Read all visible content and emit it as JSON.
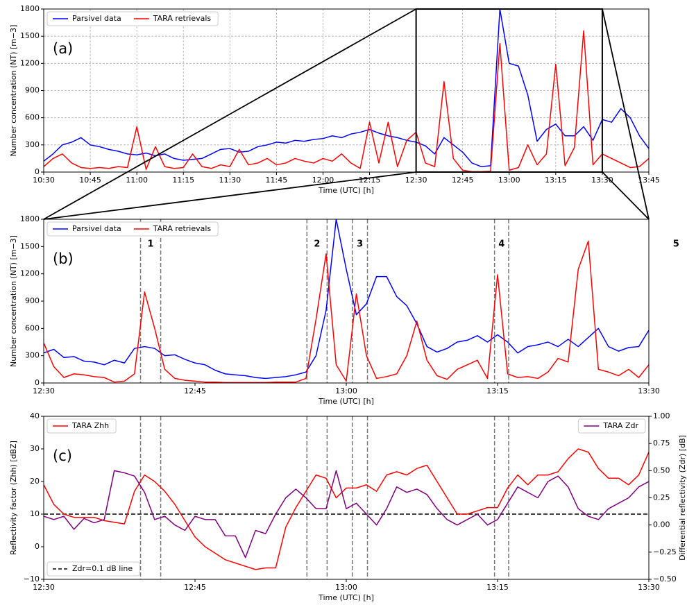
{
  "chart_data": [
    {
      "type": "line",
      "panel_label": "(a)",
      "xlabel": "Time (UTC) [h]",
      "ylabel": "Number concentration (NT) [m−3]",
      "grid": true,
      "xlim": [
        630,
        825
      ],
      "ylim": [
        0,
        1800
      ],
      "xticks": [
        {
          "value": 630,
          "label": "10:30"
        },
        {
          "value": 645,
          "label": "10:45"
        },
        {
          "value": 660,
          "label": "11:00"
        },
        {
          "value": 675,
          "label": "11:15"
        },
        {
          "value": 690,
          "label": "11:30"
        },
        {
          "value": 705,
          "label": "11:45"
        },
        {
          "value": 720,
          "label": "12:00"
        },
        {
          "value": 735,
          "label": "12:15"
        },
        {
          "value": 750,
          "label": "12:30"
        },
        {
          "value": 765,
          "label": "12:45"
        },
        {
          "value": 780,
          "label": "13:00"
        },
        {
          "value": 795,
          "label": "13:15"
        },
        {
          "value": 810,
          "label": "13:30"
        },
        {
          "value": 825,
          "label": "13:45"
        }
      ],
      "yticks": [
        0,
        300,
        600,
        900,
        1200,
        1500,
        1800
      ],
      "x": [
        630,
        633,
        636,
        639,
        642,
        645,
        648,
        651,
        654,
        657,
        660,
        663,
        666,
        669,
        672,
        675,
        678,
        681,
        684,
        687,
        690,
        693,
        696,
        699,
        702,
        705,
        708,
        711,
        714,
        717,
        720,
        723,
        726,
        729,
        732,
        735,
        738,
        741,
        744,
        747,
        750,
        753,
        756,
        759,
        762,
        765,
        768,
        771,
        774,
        777,
        780,
        783,
        786,
        789,
        792,
        795,
        798,
        801,
        804,
        807,
        810,
        813,
        816,
        819,
        822,
        825
      ],
      "series": [
        {
          "name": "Parsivel data",
          "color": "#0000ff",
          "legend": "upper left",
          "values": [
            120,
            200,
            300,
            330,
            380,
            300,
            280,
            250,
            230,
            200,
            190,
            210,
            180,
            200,
            150,
            130,
            140,
            150,
            200,
            250,
            260,
            220,
            230,
            280,
            300,
            330,
            320,
            350,
            340,
            360,
            370,
            400,
            380,
            420,
            440,
            470,
            430,
            400,
            380,
            350,
            330,
            290,
            200,
            380,
            300,
            220,
            100,
            60,
            70,
            1800,
            1200,
            1170,
            850,
            340,
            470,
            530,
            400,
            400,
            500,
            350,
            580,
            550,
            700,
            600,
            400,
            260
          ]
        },
        {
          "name": "TARA retrievals",
          "color": "#ff0000",
          "legend": "upper left",
          "values": [
            60,
            150,
            200,
            100,
            50,
            40,
            50,
            40,
            60,
            50,
            500,
            30,
            280,
            60,
            40,
            50,
            200,
            60,
            40,
            80,
            60,
            250,
            80,
            100,
            150,
            80,
            100,
            150,
            120,
            100,
            150,
            120,
            200,
            100,
            40,
            550,
            100,
            550,
            60,
            350,
            440,
            100,
            60,
            1000,
            150,
            20,
            5,
            5,
            10,
            1420,
            20,
            50,
            300,
            80,
            200,
            1190,
            70,
            270,
            1560,
            80,
            200,
            150,
            100,
            50,
            60,
            150
          ]
        }
      ]
    },
    {
      "type": "line",
      "panel_label": "(b)",
      "xlabel": "Time (UTC) [h]",
      "ylabel": "Number concentration (NT) [m−3]",
      "grid": false,
      "xlim": [
        750,
        810
      ],
      "ylim": [
        0,
        1800
      ],
      "xticks": [
        {
          "value": 750,
          "label": "12:30"
        },
        {
          "value": 765,
          "label": "12:45"
        },
        {
          "value": 780,
          "label": "13:00"
        },
        {
          "value": 795,
          "label": "13:15"
        },
        {
          "value": 810,
          "label": "13:30"
        }
      ],
      "yticks": [
        0,
        300,
        600,
        900,
        1200,
        1500,
        1800
      ],
      "vlines": [
        759.6,
        761.6,
        776.1,
        778.1,
        780.6,
        782.1,
        794.7,
        796.1,
        811.7,
        813.7
      ],
      "event_labels": [
        "1",
        "2",
        "3",
        "4",
        "5"
      ],
      "x": [
        750,
        751,
        752,
        753,
        754,
        755,
        756,
        757,
        758,
        759,
        760,
        761,
        762,
        763,
        764,
        765,
        766,
        767,
        768,
        769,
        770,
        771,
        772,
        773,
        774,
        775,
        776,
        777,
        778,
        779,
        780,
        781,
        782,
        783,
        784,
        785,
        786,
        787,
        788,
        789,
        790,
        791,
        792,
        793,
        794,
        795,
        796,
        797,
        798,
        799,
        800,
        801,
        802,
        803,
        804,
        805,
        806,
        807,
        808,
        809,
        810
      ],
      "series": [
        {
          "name": "Parsivel data",
          "color": "#0000ff",
          "legend": "upper left",
          "values": [
            330,
            370,
            280,
            290,
            240,
            230,
            200,
            250,
            220,
            380,
            400,
            380,
            300,
            310,
            260,
            220,
            200,
            140,
            100,
            90,
            80,
            60,
            50,
            60,
            70,
            90,
            120,
            300,
            800,
            1800,
            1250,
            750,
            870,
            1170,
            1170,
            950,
            850,
            650,
            400,
            340,
            380,
            450,
            470,
            520,
            450,
            530,
            450,
            330,
            400,
            420,
            450,
            400,
            480,
            400,
            500,
            600,
            400,
            350,
            390,
            400,
            580
          ]
        },
        {
          "name": "TARA retrievals",
          "color": "#ff0000",
          "legend": "upper left",
          "values": [
            440,
            180,
            60,
            100,
            90,
            70,
            60,
            10,
            20,
            100,
            1000,
            600,
            150,
            50,
            30,
            20,
            10,
            10,
            5,
            5,
            5,
            5,
            5,
            10,
            10,
            10,
            50,
            700,
            1420,
            200,
            20,
            980,
            300,
            50,
            70,
            100,
            300,
            680,
            250,
            80,
            40,
            150,
            200,
            250,
            50,
            1190,
            100,
            60,
            70,
            50,
            120,
            270,
            230,
            1250,
            1560,
            150,
            120,
            80,
            150,
            60,
            200
          ]
        }
      ]
    },
    {
      "type": "line",
      "panel_label": "(c)",
      "xlabel": "Time (UTC) [h]",
      "ylabel": "Reflectivity factor (Zhh) [dBZ]",
      "y2label": "Differential reflectivity (Zdr) [dB]",
      "grid": false,
      "xlim": [
        750,
        810
      ],
      "ylim": [
        -10,
        40
      ],
      "y2lim": [
        -0.5,
        1.0
      ],
      "xticks": [
        {
          "value": 750,
          "label": "12:30"
        },
        {
          "value": 765,
          "label": "12:45"
        },
        {
          "value": 780,
          "label": "13:00"
        },
        {
          "value": 795,
          "label": "13:15"
        },
        {
          "value": 810,
          "label": "13:30"
        }
      ],
      "yticks": [
        {
          "value": -10,
          "label": "−10"
        },
        0,
        10,
        20,
        30,
        40
      ],
      "y2ticks": [
        {
          "value": -0.5,
          "label": "−0.50"
        },
        {
          "value": -0.25,
          "label": "−0.25"
        },
        {
          "value": 0,
          "label": "0.00"
        },
        {
          "value": 0.25,
          "label": "0.25"
        },
        {
          "value": 0.5,
          "label": "0.50"
        },
        {
          "value": 0.75,
          "label": "0.75"
        },
        {
          "value": 1,
          "label": "1.00"
        }
      ],
      "vlines": [
        759.6,
        761.6,
        776.1,
        778.1,
        780.6,
        782.1,
        794.7,
        796.1,
        811.7,
        813.7
      ],
      "hline": {
        "name": "Zdr=0.1 dB line",
        "value": 0.1,
        "axis": "y2",
        "legend": "lower left"
      },
      "x": [
        750,
        751,
        752,
        753,
        754,
        755,
        756,
        757,
        758,
        759,
        760,
        761,
        762,
        763,
        764,
        765,
        766,
        767,
        768,
        769,
        770,
        771,
        772,
        773,
        774,
        775,
        776,
        777,
        778,
        779,
        780,
        781,
        782,
        783,
        784,
        785,
        786,
        787,
        788,
        789,
        790,
        791,
        792,
        793,
        794,
        795,
        796,
        797,
        798,
        799,
        800,
        801,
        802,
        803,
        804,
        805,
        806,
        807,
        808,
        809,
        810
      ],
      "series": [
        {
          "name": "TARA Zhh",
          "color": "#ff0000",
          "legend": "upper left",
          "values": [
            19,
            13,
            10,
            9,
            9,
            9,
            8,
            7.5,
            7,
            17,
            22,
            20,
            17,
            13,
            8,
            3,
            0,
            -2,
            -4,
            -5,
            -6,
            -7,
            -6.5,
            -6.5,
            6,
            12,
            17,
            22,
            21,
            15,
            18,
            18,
            19,
            17,
            22,
            23,
            22,
            24,
            25,
            20,
            15,
            10,
            10,
            11,
            12,
            12,
            18,
            22,
            19,
            22,
            22,
            23,
            27,
            30,
            29,
            24,
            21,
            21,
            19,
            22,
            29
          ]
        },
        {
          "name": "TARA Zdr",
          "color": "#800080",
          "legend": "upper right",
          "axis": "y2",
          "values": [
            0.08,
            0.05,
            0.08,
            -0.04,
            0.06,
            0.02,
            0.05,
            0.5,
            0.48,
            0.45,
            0.3,
            0.05,
            0.08,
            0.0,
            -0.05,
            0.08,
            0.05,
            0.05,
            -0.1,
            -0.1,
            -0.3,
            -0.05,
            -0.08,
            0.1,
            0.25,
            0.33,
            0.25,
            0.15,
            0.15,
            0.5,
            0.15,
            0.2,
            0.1,
            0.0,
            0.15,
            0.35,
            0.3,
            0.33,
            0.28,
            0.15,
            0.05,
            0.0,
            0.05,
            0.1,
            0.0,
            0.05,
            0.2,
            0.35,
            0.3,
            0.25,
            0.4,
            0.45,
            0.35,
            0.15,
            0.08,
            0.05,
            0.15,
            0.2,
            0.25,
            0.35,
            0.4
          ]
        }
      ]
    }
  ]
}
